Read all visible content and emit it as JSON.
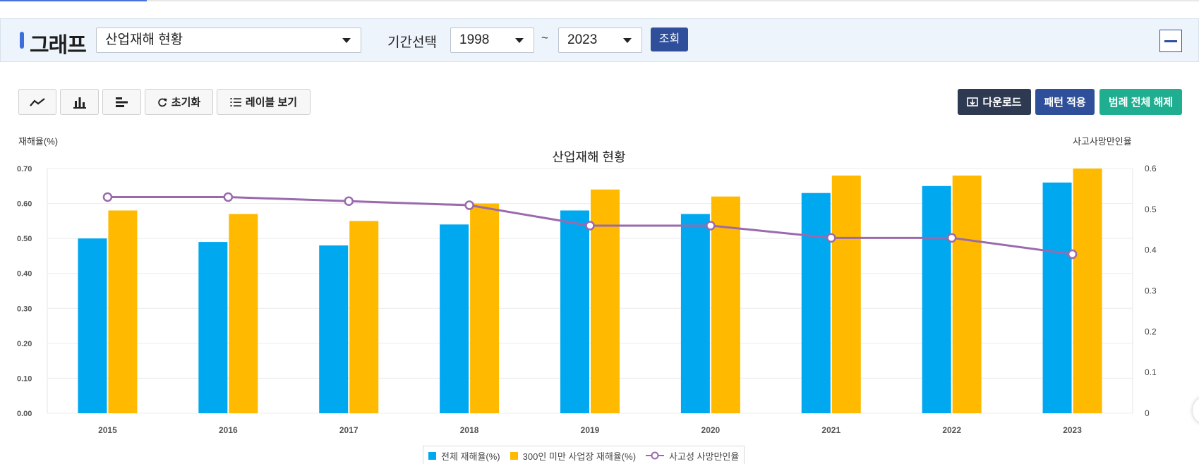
{
  "header": {
    "graph_title": "그래프",
    "dataset_select": "산업재해 현황",
    "period_label": "기간선택",
    "start_year": "1998",
    "tilde": "~",
    "end_year": "2023",
    "query_button": "조회"
  },
  "toolbar": {
    "reset_label": "초기화",
    "label_view": "레이블 보기",
    "download": "다운로드",
    "pattern_apply": "패턴 적용",
    "legend_clear_all": "범례 전체 해제"
  },
  "colors": {
    "series1": "#00a8f0",
    "series2": "#ffba00",
    "line": "#9a6aad",
    "download_bg": "#2e3a52",
    "pattern_bg": "#2f4f9b",
    "legend_clear_bg": "#1fae8f"
  },
  "chart_data": {
    "type": "bar",
    "title": "산업재해 현황",
    "ylabel": "재해율(%)",
    "y2label": "사고사망만인율",
    "ylim": [
      0,
      0.7
    ],
    "y2lim": [
      0,
      0.6
    ],
    "yticks": [
      "0.00",
      "0.10",
      "0.20",
      "0.30",
      "0.40",
      "0.50",
      "0.60",
      "0.70"
    ],
    "y2ticks": [
      "0",
      "0.1",
      "0.2",
      "0.3",
      "0.4",
      "0.5",
      "0.6"
    ],
    "categories": [
      "2015",
      "2016",
      "2017",
      "2018",
      "2019",
      "2020",
      "2021",
      "2022",
      "2023"
    ],
    "grid": true,
    "legend_position": "bottom",
    "series": [
      {
        "name": "전체 재해율(%)",
        "type": "bar",
        "axis": "left",
        "values": [
          0.5,
          0.49,
          0.48,
          0.54,
          0.58,
          0.57,
          0.63,
          0.65,
          0.66
        ]
      },
      {
        "name": "300인 미만 사업장 재해율(%)",
        "type": "bar",
        "axis": "left",
        "values": [
          0.58,
          0.57,
          0.55,
          0.6,
          0.64,
          0.62,
          0.68,
          0.68,
          0.7
        ]
      },
      {
        "name": "사고성 사망만인율",
        "type": "line",
        "axis": "right",
        "values": [
          0.53,
          0.53,
          0.52,
          0.51,
          0.46,
          0.46,
          0.43,
          0.43,
          0.39
        ]
      }
    ]
  }
}
